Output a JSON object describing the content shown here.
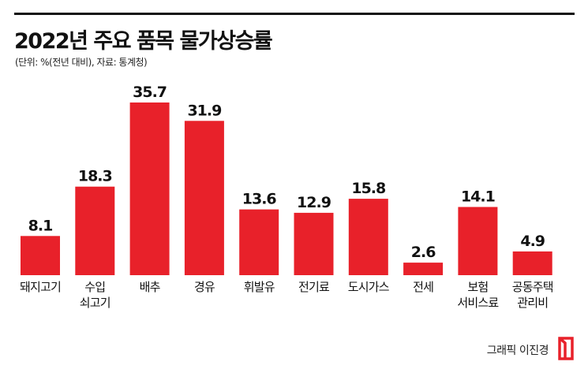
{
  "header": {
    "title": "2022년 주요 품목 물가상승률",
    "subtitle": "(단위: %(전년 대비), 자료: 통계청)"
  },
  "chart_data": {
    "type": "bar",
    "title": "2022년 주요 품목 물가상승률",
    "categories": [
      [
        "돼지고기"
      ],
      [
        "수입",
        "쇠고기"
      ],
      [
        "배추"
      ],
      [
        "경유"
      ],
      [
        "휘발유"
      ],
      [
        "전기료"
      ],
      [
        "도시가스"
      ],
      [
        "전세"
      ],
      [
        "보험",
        "서비스료"
      ],
      [
        "공동주택",
        "관리비"
      ]
    ],
    "values": [
      8.1,
      18.3,
      35.7,
      31.9,
      13.6,
      12.9,
      15.8,
      2.6,
      14.1,
      4.9
    ],
    "value_labels": [
      "8.1",
      "18.3",
      "35.7",
      "31.9",
      "13.6",
      "12.9",
      "15.8",
      "2.6",
      "14.1",
      "4.9"
    ],
    "xlabel": "",
    "ylabel": "",
    "ylim": [
      0,
      35.7
    ],
    "grid": false,
    "legend": "none",
    "bar_color": "#e8212a"
  },
  "footer": {
    "credit": "그래픽 이진경",
    "logo_color": "#e8212a"
  }
}
